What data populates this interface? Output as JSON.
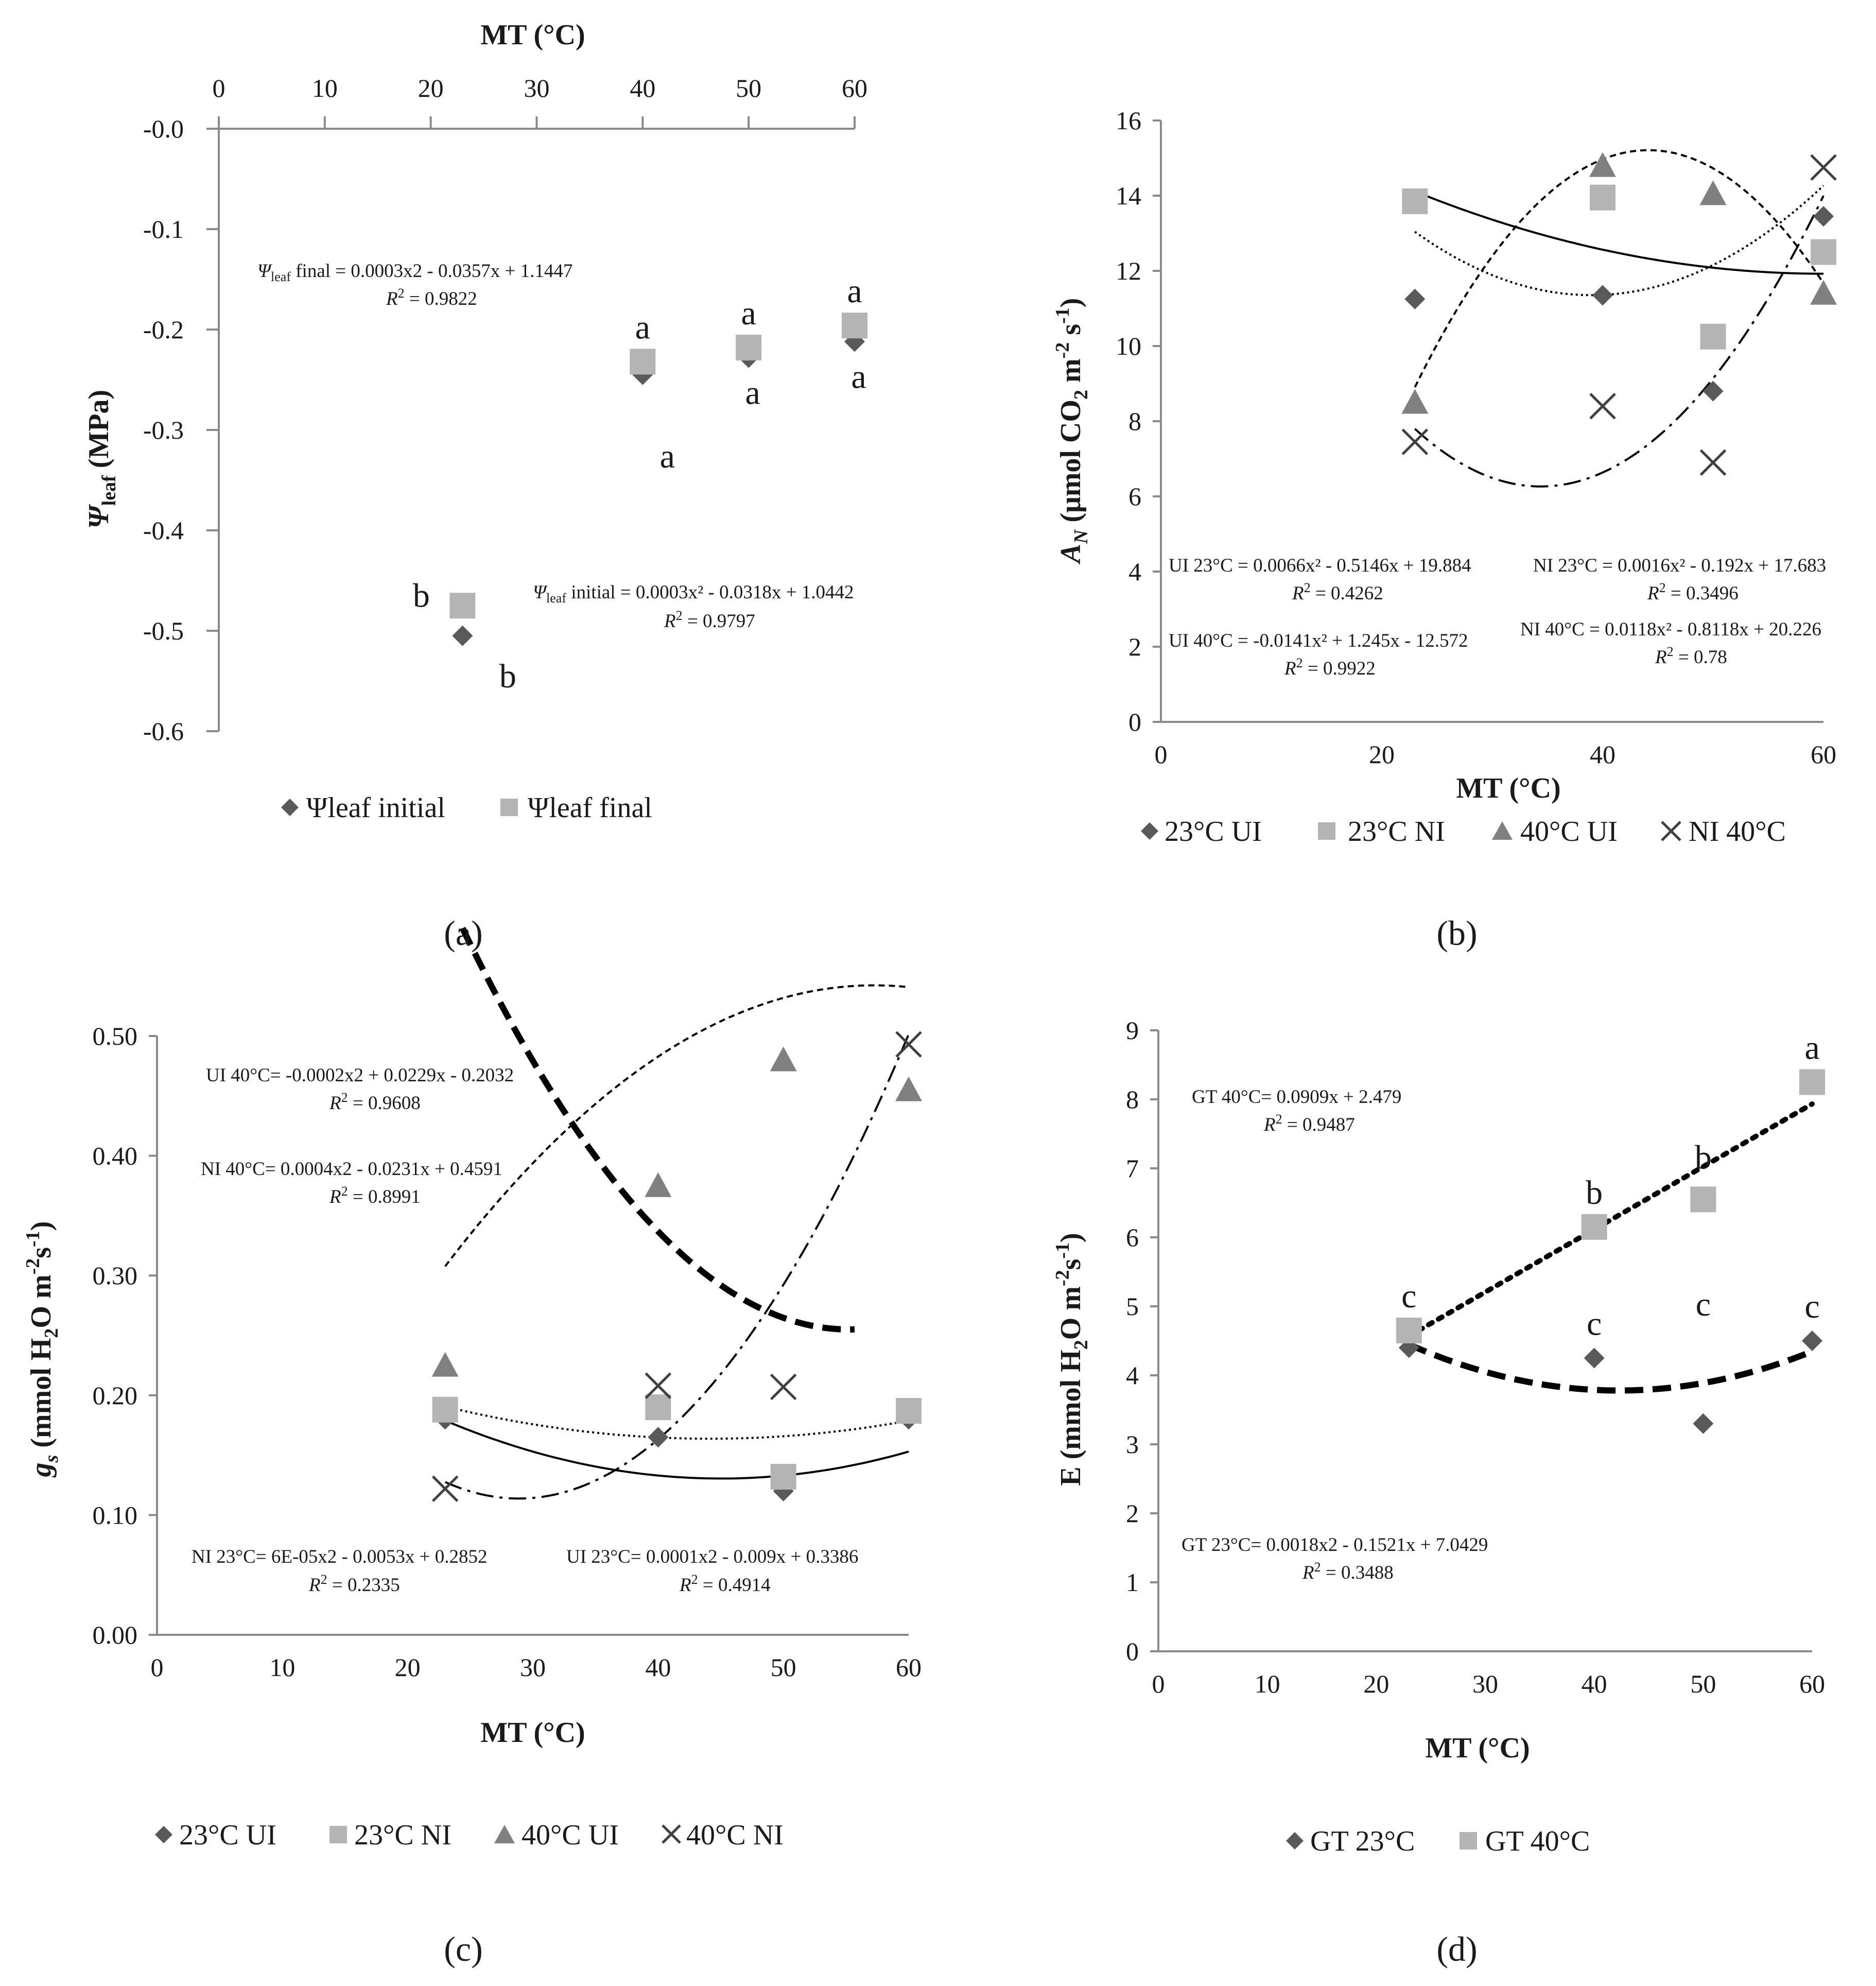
{
  "colors": {
    "dark": "#595959",
    "light": "#b4b4b4",
    "triangle": "#808080",
    "cross": "#404040",
    "axis": "#8a8a8a",
    "curve": "#000000"
  },
  "chart_data": [
    {
      "panel": "a",
      "panel_label": "(a)",
      "type": "scatter",
      "xlabel": "MT (°C)",
      "ylabel": "Ψleaf (MPa)",
      "xlim": [
        0,
        60
      ],
      "ylim": [
        -0.6,
        0
      ],
      "x_ticks": [
        "0",
        "10",
        "20",
        "30",
        "40",
        "50",
        "60"
      ],
      "y_ticks": [
        "-0.0",
        "-0.1",
        "-0.2",
        "-0.3",
        "-0.4",
        "-0.5",
        "-0.6"
      ],
      "series": [
        {
          "name": "Ψleaf initial",
          "marker": "diamond",
          "color": "#595959",
          "x": [
            23,
            40,
            50,
            60
          ],
          "y": [
            -0.505,
            -0.245,
            -0.228,
            -0.212
          ],
          "fit": {
            "a": 0.0003,
            "b": -0.0318,
            "c": 1.0442,
            "style": "solid",
            "shift": -0.0015
          },
          "letters": [
            {
              "x": 23,
              "y": -0.505,
              "t": "b",
              "pos": "below"
            },
            {
              "x": 40,
              "y": -0.245,
              "t": "a",
              "pos": "below"
            },
            {
              "x": 50,
              "y": -0.228,
              "t": "a",
              "pos": "below"
            },
            {
              "x": 60,
              "y": -0.212,
              "t": "a",
              "pos": "below"
            }
          ]
        },
        {
          "name": "Ψleaf final",
          "marker": "square",
          "color": "#b4b4b4",
          "x": [
            23,
            40,
            50,
            60
          ],
          "y": [
            -0.475,
            -0.232,
            -0.218,
            -0.196
          ],
          "fit": {
            "a": 0.0003,
            "b": -0.0357,
            "c": 1.1447,
            "style": "thickdash",
            "shift": -1.2785
          },
          "letters": [
            {
              "x": 23,
              "y": -0.475,
              "t": "b",
              "pos": "left"
            },
            {
              "x": 40,
              "y": -0.232,
              "t": "a",
              "pos": "above"
            },
            {
              "x": 50,
              "y": -0.218,
              "t": "a",
              "pos": "above"
            },
            {
              "x": 60,
              "y": -0.196,
              "t": "a",
              "pos": "above"
            }
          ]
        }
      ],
      "equations": [
        {
          "sym": "Ψ",
          "sub": "leaf",
          "rest": " final = 0.0003x2 - 0.0357x + 1.1447",
          "r2": "= 0.9822"
        },
        {
          "sym": "Ψ",
          "sub": "leaf",
          "rest": " initial = 0.0003x² - 0.0318x + 1.0442",
          "r2": "= 0.9797"
        }
      ],
      "legend": [
        "Ψleaf initial",
        "Ψleaf final"
      ]
    },
    {
      "panel": "b",
      "panel_label": "(b)",
      "type": "scatter",
      "xlabel": "MT (°C)",
      "ylabel": "AN (μmol CO2 m-2 s-1)",
      "xlim": [
        0,
        60
      ],
      "ylim": [
        0,
        16
      ],
      "x_ticks": [
        "0",
        "20",
        "40",
        "60"
      ],
      "y_ticks": [
        "0",
        "2",
        "4",
        "6",
        "8",
        "10",
        "12",
        "14",
        "16"
      ],
      "series": [
        {
          "name": "23°C UI",
          "marker": "diamond",
          "color": "#595959",
          "x": [
            23,
            40,
            50,
            60
          ],
          "y": [
            11.25,
            11.35,
            8.8,
            13.45
          ],
          "fit": {
            "a": 0.0066,
            "b": -0.5146,
            "c": 19.884,
            "style": "dotted",
            "shift": 1.5
          }
        },
        {
          "name": "23°C NI",
          "marker": "square",
          "color": "#b4b4b4",
          "x": [
            23,
            40,
            50,
            60
          ],
          "y": [
            13.85,
            13.95,
            10.25,
            12.5
          ],
          "fit": {
            "a": 0.0016,
            "b": -0.192,
            "c": 17.683,
            "style": "solid",
            "shift": 0
          }
        },
        {
          "name": "40°C UI",
          "marker": "triangle",
          "color": "#808080",
          "x": [
            23,
            40,
            50,
            60
          ],
          "y": [
            8.5,
            14.8,
            14.05,
            11.4
          ],
          "fit": {
            "a": -0.0141,
            "b": 1.245,
            "c": -12.572,
            "style": "dashed",
            "shift": 0.3
          }
        },
        {
          "name": "NI 40°C",
          "marker": "cross",
          "color": "#404040",
          "x": [
            23,
            40,
            50,
            60
          ],
          "y": [
            7.45,
            8.4,
            6.9,
            14.75
          ],
          "fit": {
            "a": 0.0118,
            "b": -0.8118,
            "c": 20.226,
            "style": "dashdot",
            "shift": 0
          }
        }
      ],
      "equations": [
        {
          "label": "UI 23°C = 0.0066x² - 0.5146x + 19.884",
          "r2": "= 0.4262"
        },
        {
          "label": "NI 23°C = 0.0016x² - 0.192x + 17.683",
          "r2": "= 0.3496"
        },
        {
          "label": "UI 40°C = -0.0141x² + 1.245x - 12.572",
          "r2": "= 0.9922"
        },
        {
          "label": "NI 40°C = 0.0118x² - 0.8118x + 20.226",
          "r2": "= 0.78"
        }
      ],
      "legend": [
        "23°C UI",
        "23°C NI",
        "40°C UI",
        "NI 40°C"
      ]
    },
    {
      "panel": "c",
      "panel_label": "(c)",
      "type": "scatter",
      "xlabel": "MT (°C)",
      "ylabel": "gs (mmol H2O m-2s-1)",
      "xlim": [
        0,
        60
      ],
      "ylim": [
        0,
        0.5
      ],
      "x_ticks": [
        "0",
        "10",
        "20",
        "30",
        "40",
        "50",
        "60"
      ],
      "y_ticks": [
        "0.00",
        "0.10",
        "0.20",
        "0.30",
        "0.40",
        "0.50"
      ],
      "series": [
        {
          "name": "23°C UI",
          "marker": "diamond",
          "color": "#595959",
          "x": [
            23,
            40,
            50,
            60
          ],
          "y": [
            0.18,
            0.165,
            0.12,
            0.18
          ],
          "fit": {
            "a": 0.0001,
            "b": -0.009,
            "c": 0.3386,
            "style": "solid",
            "shift": -0.0056
          }
        },
        {
          "name": "23°C NI",
          "marker": "square",
          "color": "#b4b4b4",
          "x": [
            23,
            40,
            50,
            60
          ],
          "y": [
            0.188,
            0.19,
            0.132,
            0.187
          ],
          "fit": {
            "a": 6e-05,
            "b": -0.0053,
            "c": 0.2852,
            "style": "dotted",
            "shift": -0.0044
          }
        },
        {
          "name": "40°C UI",
          "marker": "triangle",
          "color": "#808080",
          "x": [
            23,
            40,
            50,
            60
          ],
          "y": [
            0.225,
            0.375,
            0.48,
            0.455
          ],
          "fit": {
            "a": -0.0002,
            "b": 0.0229,
            "c": -0.2032,
            "style": "dashed",
            "shift": 0.09
          }
        },
        {
          "name": "40°C NI",
          "marker": "cross",
          "color": "#404040",
          "x": [
            23,
            40,
            50,
            60
          ],
          "y": [
            0.122,
            0.208,
            0.207,
            0.493
          ],
          "fit": {
            "a": 0.0004,
            "b": -0.0231,
            "c": 0.4591,
            "style": "dashdot",
            "shift": -0.0118
          }
        }
      ],
      "equations": [
        {
          "label": "UI 40°C= -0.0002x2 + 0.0229x - 0.2032",
          "r2": "= 0.9608"
        },
        {
          "label": "NI 40°C= 0.0004x2 - 0.0231x + 0.4591",
          "r2": "= 0.8991"
        },
        {
          "label": "NI 23°C= 6E-05x2 - 0.0053x + 0.2852",
          "r2": "= 0.2335"
        },
        {
          "label": "UI 23°C= 0.0001x2 - 0.009x + 0.3386",
          "r2": "= 0.4914"
        }
      ],
      "legend": [
        "23°C UI",
        "23°C NI",
        "40°C UI",
        "40°C NI"
      ]
    },
    {
      "panel": "d",
      "panel_label": "(d)",
      "type": "scatter",
      "xlabel": "MT (°C)",
      "ylabel": "E (mmol H2O m-2s-1)",
      "xlim": [
        0,
        60
      ],
      "ylim": [
        0,
        9
      ],
      "x_ticks": [
        "0",
        "10",
        "20",
        "30",
        "40",
        "50",
        "60"
      ],
      "y_ticks": [
        "0",
        "1",
        "2",
        "3",
        "4",
        "5",
        "6",
        "7",
        "8",
        "9"
      ],
      "series": [
        {
          "name": "GT 23°C",
          "marker": "diamond",
          "color": "#595959",
          "x": [
            23,
            40,
            50,
            60
          ],
          "y": [
            4.4,
            4.25,
            3.3,
            4.5
          ],
          "fit": {
            "a": 0.0018,
            "b": -0.1521,
            "c": 7.0429,
            "style": "thickdash",
            "shift": -0.05
          },
          "letters": [
            {
              "x": 40,
              "y": 4.25,
              "t": "c",
              "pos": "above"
            },
            {
              "x": 50,
              "y": 3.3,
              "t": "c",
              "pos": "aboveFar"
            },
            {
              "x": 60,
              "y": 4.5,
              "t": "c",
              "pos": "above"
            }
          ]
        },
        {
          "name": "GT 40°C",
          "marker": "square",
          "color": "#b4b4b4",
          "x": [
            23,
            40,
            50,
            60
          ],
          "y": [
            4.65,
            6.15,
            6.55,
            8.25
          ],
          "fit": {
            "a": 0,
            "b": 0.0909,
            "c": 2.479,
            "style": "thickdot",
            "shift": 0
          },
          "letters": [
            {
              "x": 23,
              "y": 4.65,
              "t": "c",
              "pos": "above"
            },
            {
              "x": 40,
              "y": 6.15,
              "t": "b",
              "pos": "above"
            },
            {
              "x": 50,
              "y": 6.55,
              "t": "b",
              "pos": "aboveFar"
            },
            {
              "x": 60,
              "y": 8.25,
              "t": "a",
              "pos": "above"
            }
          ]
        }
      ],
      "equations": [
        {
          "label": "GT 40°C= 0.0909x + 2.479",
          "r2": "= 0.9487"
        },
        {
          "label": "GT 23°C= 0.0018x2 - 0.1521x + 7.0429",
          "r2": "= 0.3488"
        }
      ],
      "legend": [
        "GT 23°C",
        "GT 40°C"
      ]
    }
  ]
}
